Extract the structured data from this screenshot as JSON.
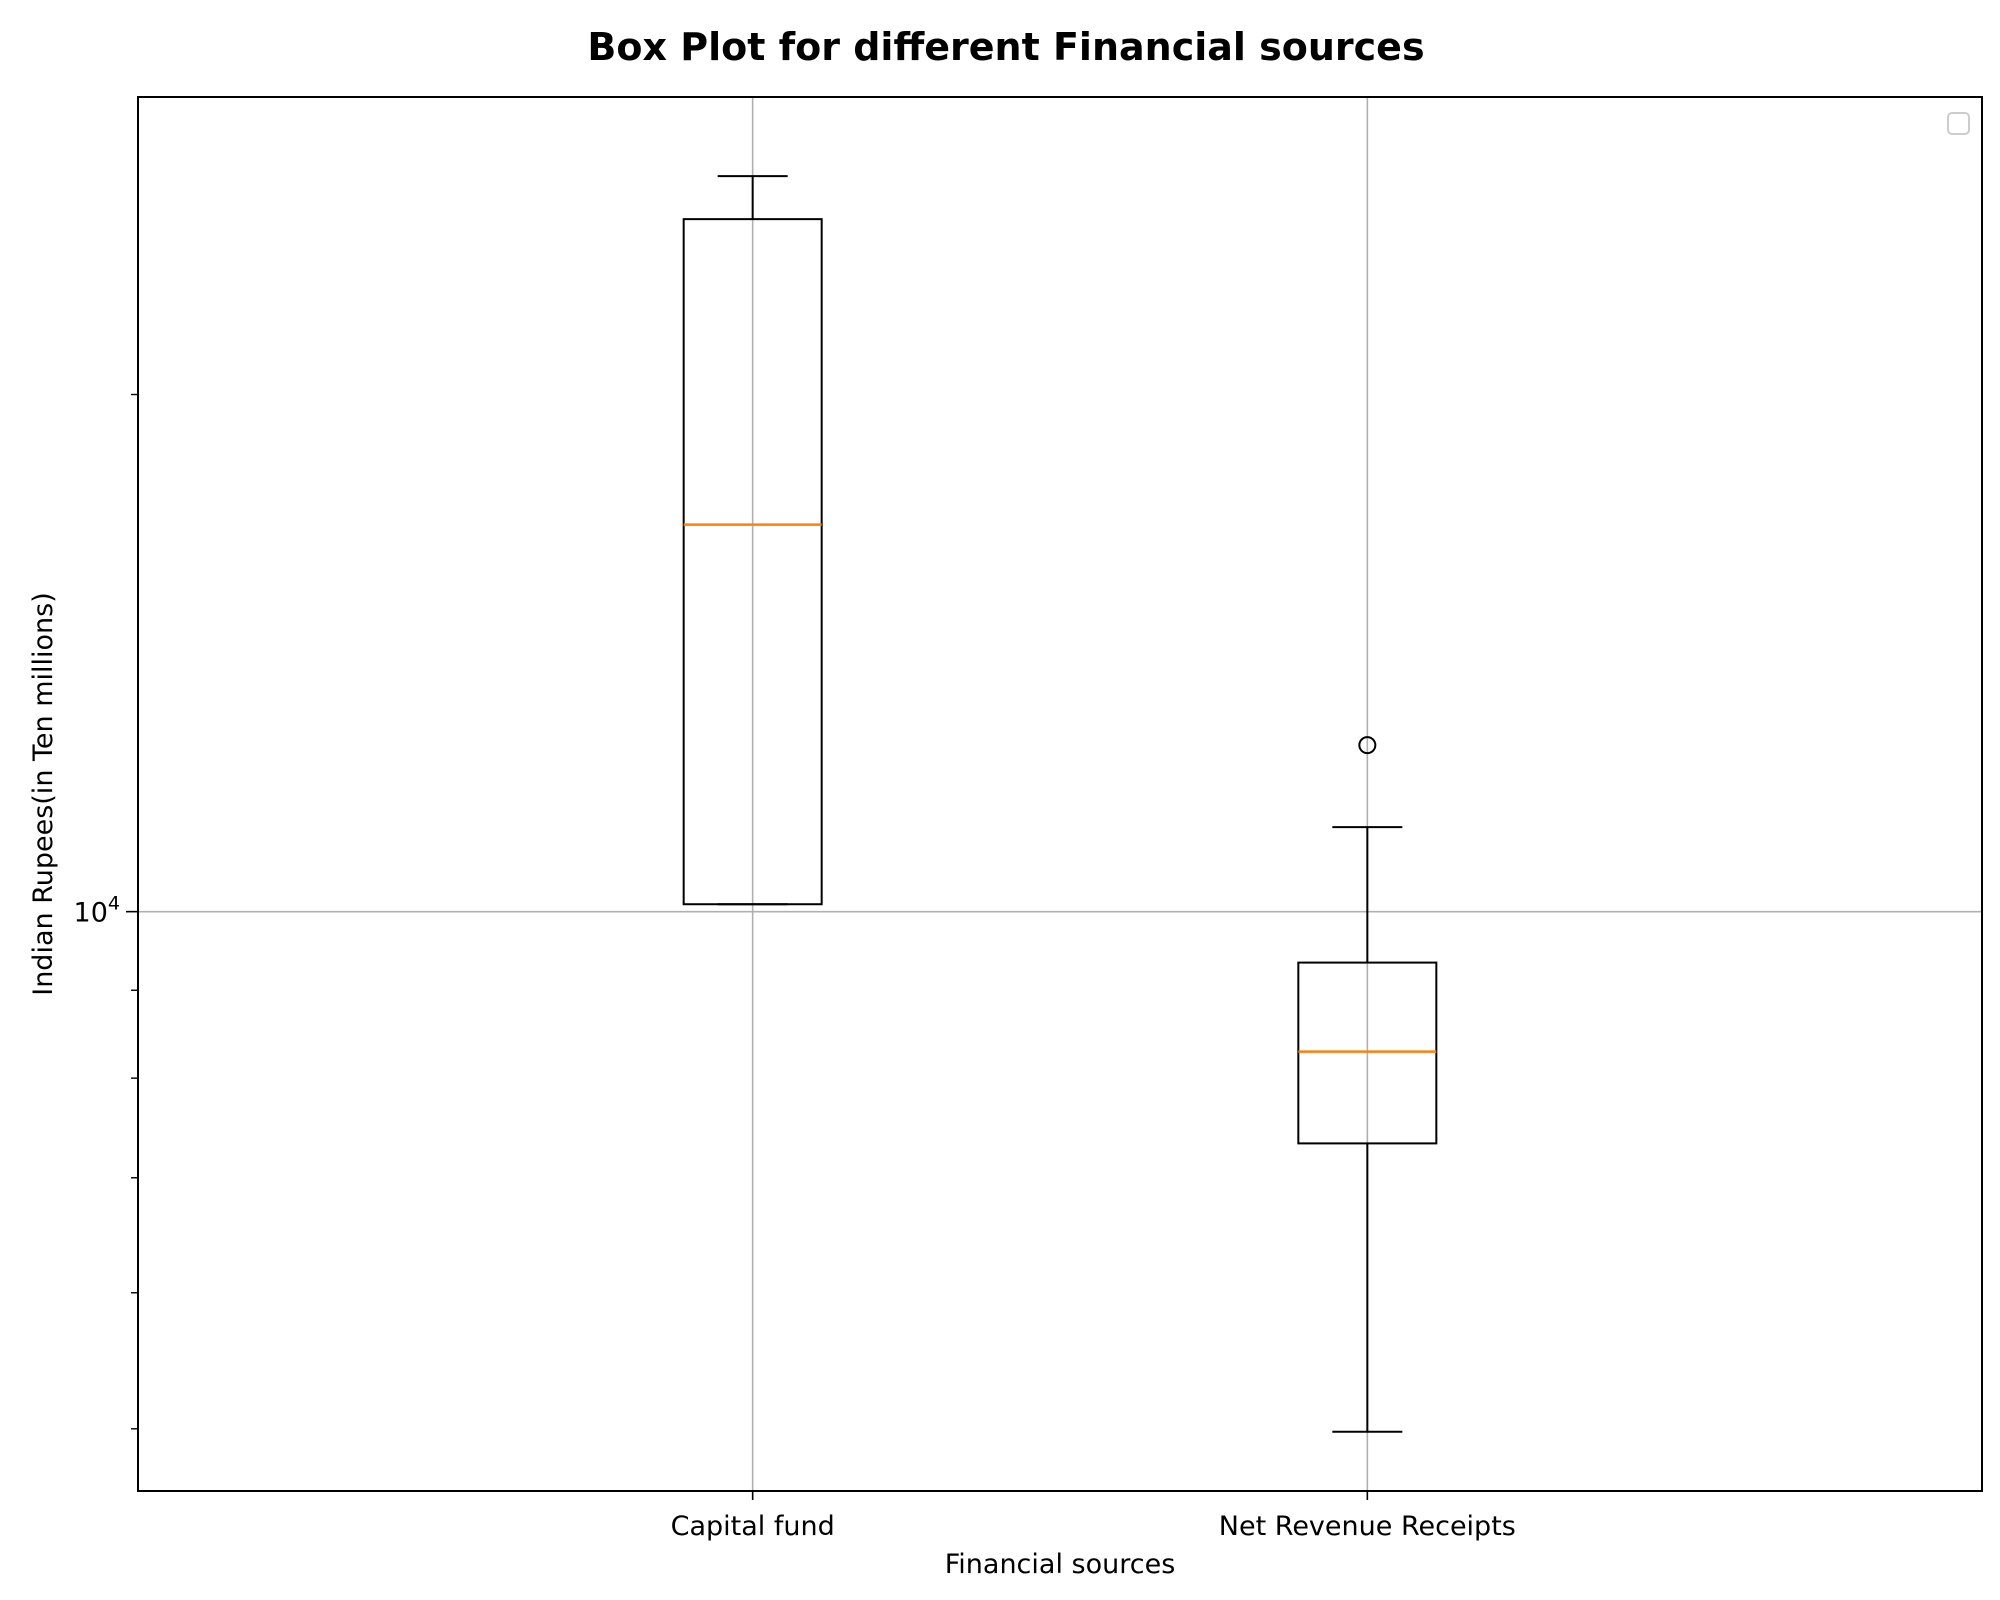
{
  "chart_data": {
    "type": "box",
    "title": "Box Plot for different Financial sources",
    "xlabel": "Financial sources",
    "ylabel": "Indian Rupees(in Ten millions)",
    "yscale": "log",
    "ylim": [
      4600,
      29800
    ],
    "yticks": [
      {
        "value": 10000,
        "base": "10",
        "exp": "4"
      }
    ],
    "grid": true,
    "legend": {
      "placement": "upper-right",
      "entries": []
    },
    "categories": [
      "Capital fund",
      "Net Revenue Receipts"
    ],
    "boxes": [
      {
        "label": "Capital fund",
        "whislo": 10100,
        "q1": 10100,
        "med": 16800,
        "q3": 25300,
        "whishi": 26800,
        "fliers": []
      },
      {
        "label": "Net Revenue Receipts",
        "whislo": 4980,
        "q1": 7330,
        "med": 8290,
        "q3": 9340,
        "whishi": 11200,
        "fliers": [
          12500
        ]
      }
    ],
    "colors": {
      "box": "#000000",
      "median": "#ff7f0e",
      "grid": "#b0b0b0",
      "legend_border": "#cccccc"
    }
  }
}
